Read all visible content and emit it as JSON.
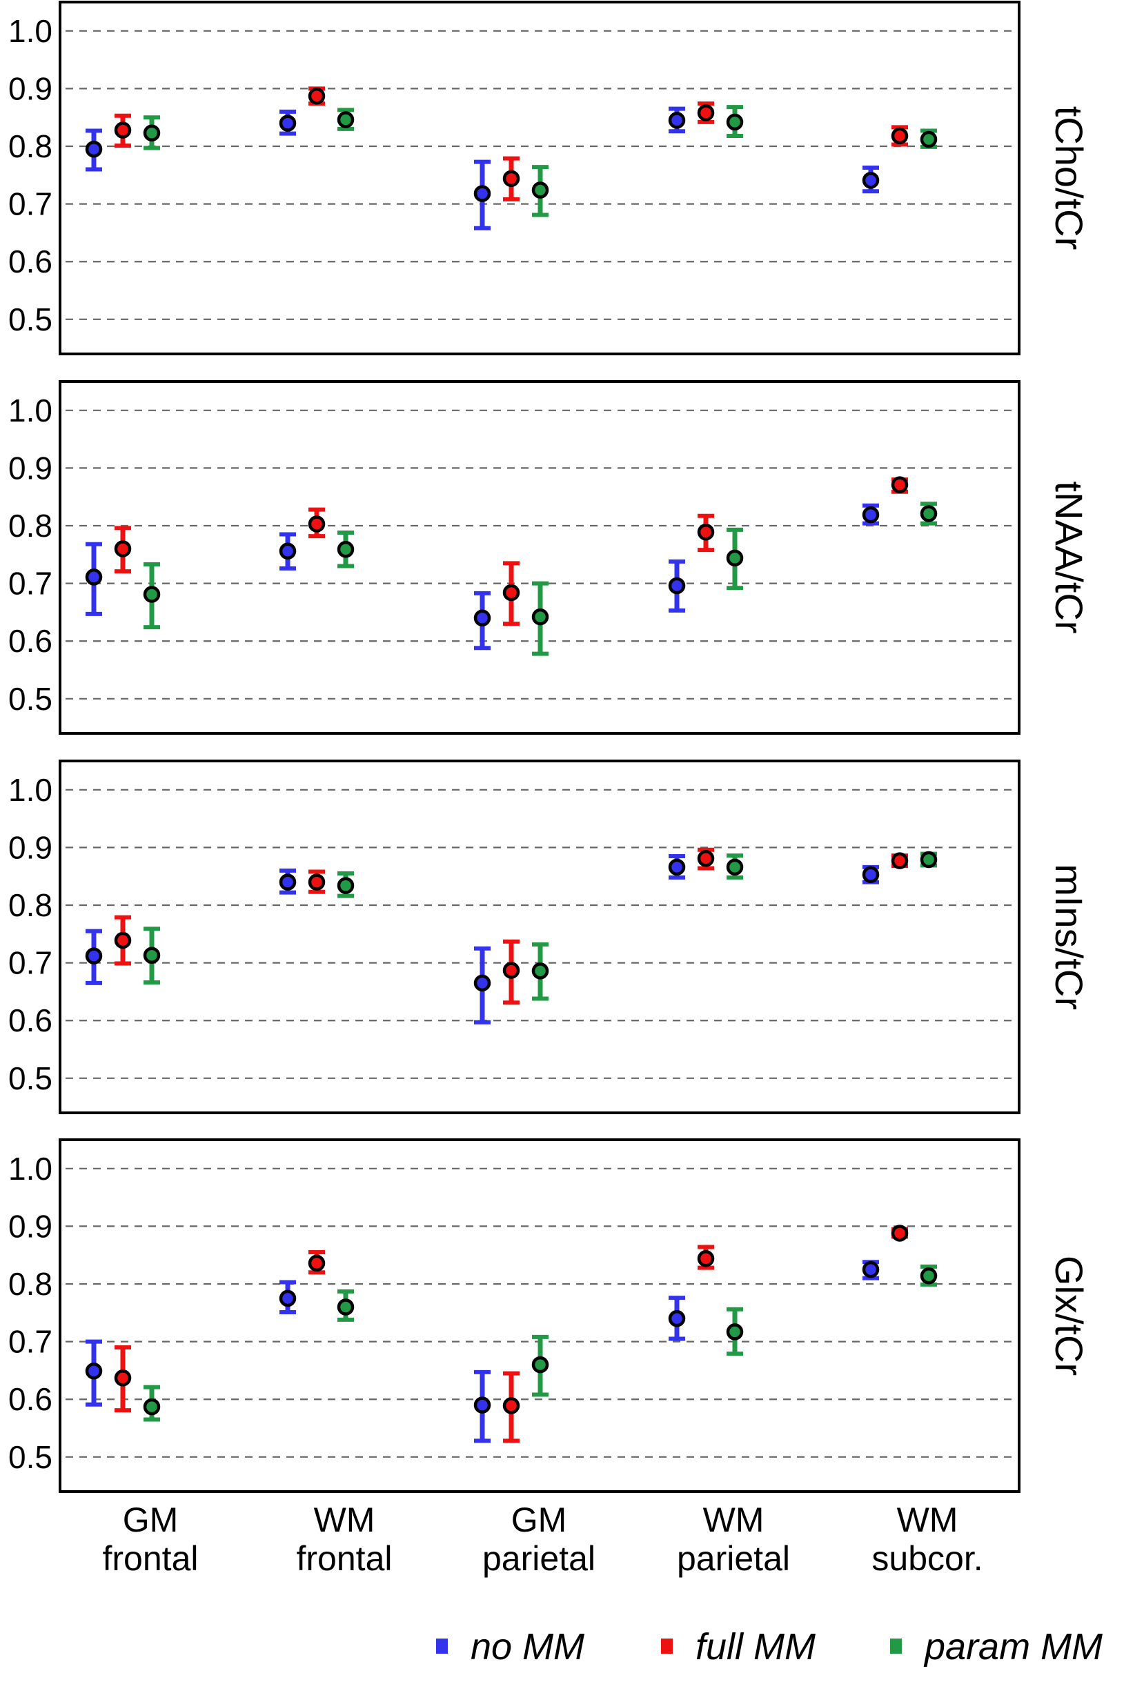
{
  "chart_data": {
    "type": "scatter",
    "style": "points-with-error-bars",
    "categories": [
      [
        "GM",
        "frontal"
      ],
      [
        "WM",
        "frontal"
      ],
      [
        "GM",
        "parietal"
      ],
      [
        "WM",
        "parietal"
      ],
      [
        "WM",
        "subcor."
      ]
    ],
    "ylim": [
      0.44,
      1.05
    ],
    "yticks": [
      0.5,
      0.6,
      0.7,
      0.8,
      0.9,
      1.0
    ],
    "ytick_labels": [
      "0.5",
      "0.6",
      "0.7",
      "0.8",
      "0.9",
      "1.0"
    ],
    "grid": "horizontal dashed",
    "legend_position": "bottom",
    "legend": [
      {
        "name": "no MM",
        "color": "#3333ee"
      },
      {
        "name": "full MM",
        "color": "#ee1111"
      },
      {
        "name": "param MM",
        "color": "#229944"
      }
    ],
    "marker": {
      "shape": "open circle",
      "color": "#000000"
    },
    "panels": [
      {
        "label": "tCho/tCr",
        "series": [
          {
            "name": "no MM",
            "values": [
              0.795,
              0.84,
              0.718,
              0.845,
              0.741
            ],
            "err_low": [
              0.76,
              0.822,
              0.658,
              0.826,
              0.722
            ],
            "err_high": [
              0.827,
              0.86,
              0.773,
              0.865,
              0.763
            ]
          },
          {
            "name": "full MM",
            "values": [
              0.828,
              0.887,
              0.744,
              0.858,
              0.818
            ],
            "err_low": [
              0.801,
              0.874,
              0.708,
              0.842,
              0.803
            ],
            "err_high": [
              0.853,
              0.9,
              0.779,
              0.874,
              0.833
            ]
          },
          {
            "name": "param MM",
            "values": [
              0.823,
              0.846,
              0.724,
              0.842,
              0.812
            ],
            "err_low": [
              0.797,
              0.83,
              0.681,
              0.818,
              0.799
            ],
            "err_high": [
              0.85,
              0.863,
              0.764,
              0.868,
              0.827
            ]
          }
        ]
      },
      {
        "label": "tNAA/tCr",
        "series": [
          {
            "name": "no MM",
            "values": [
              0.711,
              0.756,
              0.64,
              0.696,
              0.819
            ],
            "err_low": [
              0.647,
              0.726,
              0.588,
              0.653,
              0.804
            ],
            "err_high": [
              0.768,
              0.785,
              0.683,
              0.738,
              0.835
            ]
          },
          {
            "name": "full MM",
            "values": [
              0.76,
              0.803,
              0.684,
              0.789,
              0.871
            ],
            "err_low": [
              0.721,
              0.782,
              0.63,
              0.758,
              0.859
            ],
            "err_high": [
              0.796,
              0.828,
              0.735,
              0.817,
              0.88
            ]
          },
          {
            "name": "param MM",
            "values": [
              0.681,
              0.759,
              0.642,
              0.744,
              0.821
            ],
            "err_low": [
              0.624,
              0.73,
              0.578,
              0.692,
              0.804
            ],
            "err_high": [
              0.733,
              0.788,
              0.7,
              0.793,
              0.838
            ]
          }
        ]
      },
      {
        "label": "mIns/tCr",
        "series": [
          {
            "name": "no MM",
            "values": [
              0.712,
              0.84,
              0.665,
              0.866,
              0.853
            ],
            "err_low": [
              0.665,
              0.822,
              0.597,
              0.848,
              0.84
            ],
            "err_high": [
              0.755,
              0.86,
              0.725,
              0.885,
              0.866
            ]
          },
          {
            "name": "full MM",
            "values": [
              0.739,
              0.84,
              0.687,
              0.881,
              0.877
            ],
            "err_low": [
              0.699,
              0.823,
              0.631,
              0.864,
              0.868
            ],
            "err_high": [
              0.779,
              0.858,
              0.737,
              0.896,
              0.886
            ]
          },
          {
            "name": "param MM",
            "values": [
              0.713,
              0.834,
              0.686,
              0.866,
              0.879
            ],
            "err_low": [
              0.666,
              0.816,
              0.638,
              0.848,
              0.869
            ],
            "err_high": [
              0.759,
              0.855,
              0.732,
              0.886,
              0.889
            ]
          }
        ]
      },
      {
        "label": "Glx/tCr",
        "series": [
          {
            "name": "no MM",
            "values": [
              0.649,
              0.775,
              0.59,
              0.74,
              0.825
            ],
            "err_low": [
              0.591,
              0.751,
              0.528,
              0.705,
              0.81
            ],
            "err_high": [
              0.7,
              0.803,
              0.647,
              0.776,
              0.838
            ]
          },
          {
            "name": "full MM",
            "values": [
              0.637,
              0.836,
              0.589,
              0.844,
              0.888
            ],
            "err_low": [
              0.581,
              0.82,
              0.528,
              0.828,
              0.882
            ],
            "err_high": [
              0.69,
              0.855,
              0.645,
              0.864,
              0.895
            ]
          },
          {
            "name": "param MM",
            "values": [
              0.587,
              0.76,
              0.66,
              0.717,
              0.814
            ],
            "err_low": [
              0.565,
              0.738,
              0.608,
              0.679,
              0.799
            ],
            "err_high": [
              0.621,
              0.787,
              0.708,
              0.756,
              0.83
            ]
          }
        ]
      }
    ]
  }
}
